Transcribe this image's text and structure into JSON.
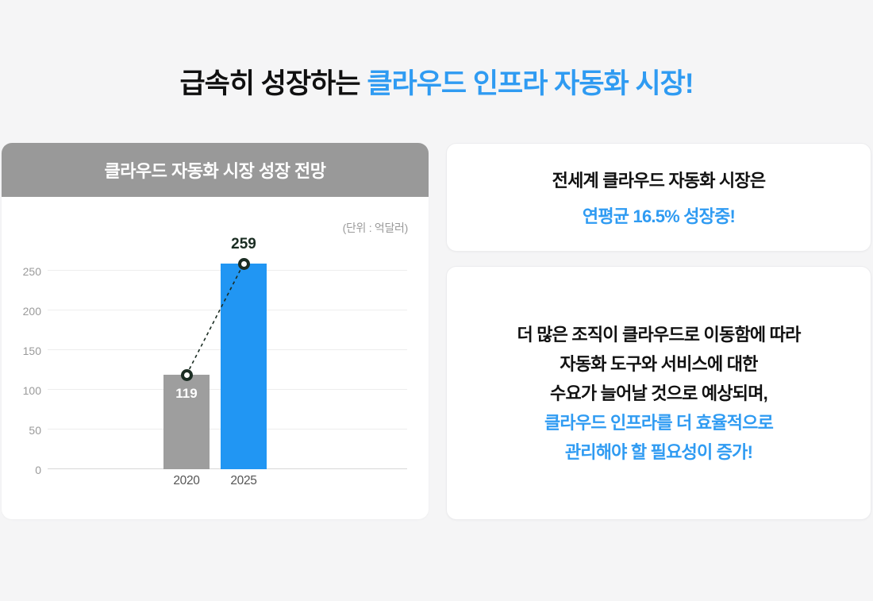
{
  "page": {
    "background": "#f5f5f6"
  },
  "colors": {
    "accent_blue_text": "#2f9bf2",
    "bar_blue": "#2196f3",
    "bar_gray": "#9e9e9e",
    "header_gray": "#999999",
    "marker_dark": "#1b2d23"
  },
  "title": {
    "black_part": "급속히 성장하는 ",
    "blue_part": "클라우드 인프라 자동화 시장!"
  },
  "chart_card": {
    "header": "클라우드 자동화 시장 성장 전망",
    "unit_label": "(단위 : 억달러)"
  },
  "chart_data": {
    "type": "bar",
    "title": "클라우드 자동화 시장 성장 전망",
    "unit": "억달러",
    "categories": [
      "2020",
      "2025"
    ],
    "values": [
      119,
      259
    ],
    "bar_colors": [
      "#9e9e9e",
      "#2196f3"
    ],
    "value_label_placement": [
      "inside",
      "above"
    ],
    "yticks": [
      0,
      50,
      100,
      150,
      200,
      250
    ],
    "ylim": [
      0,
      291
    ],
    "grid": true,
    "xlabel": "",
    "ylabel": "",
    "overlay_line": {
      "type": "dashed-trend",
      "marker": "open-circle",
      "color": "#1b2d23",
      "connects": [
        [
          0,
          119
        ],
        [
          1,
          259
        ]
      ]
    }
  },
  "info_cards": {
    "top": {
      "line1": "전세계 클라우드 자동화 시장은",
      "line2": "연평균 16.5% 성장중!"
    },
    "bottom": {
      "lines": [
        "더 많은 조직이 클라우드로 이동함에 따라",
        "자동화 도구와 서비스에 대한",
        "수요가 늘어날 것으로 예상되며,",
        "클라우드 인프라를 더 효율적으로",
        "관리해야 할 필요성이 증가!"
      ],
      "highlight_start_index": 3
    }
  }
}
